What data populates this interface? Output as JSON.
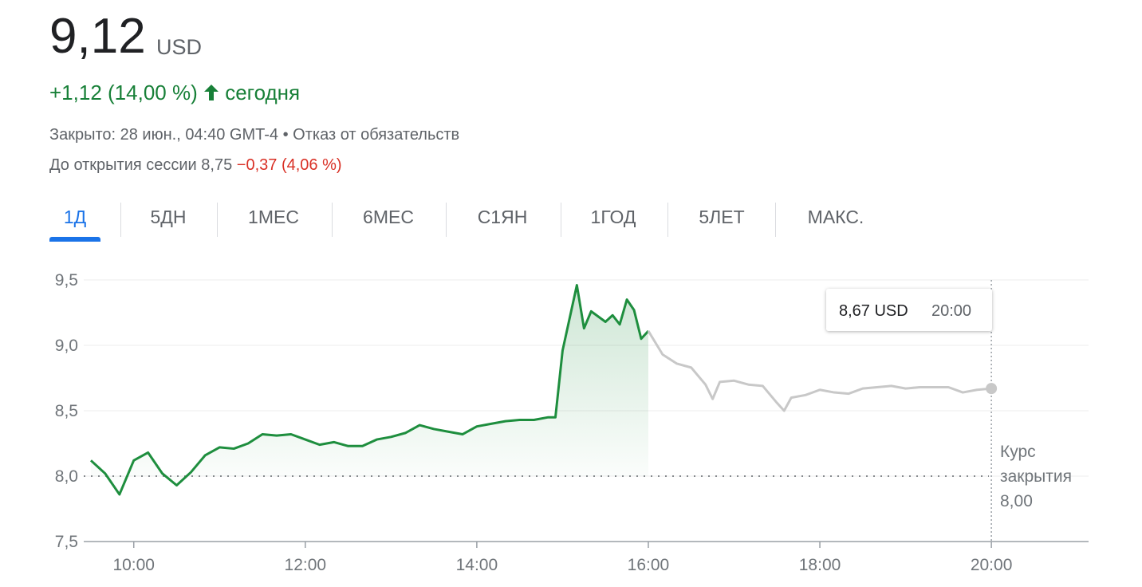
{
  "header": {
    "price": "9,12",
    "currency": "USD",
    "change": "+1,12 (14,00 %)",
    "period": "сегодня",
    "status": "Закрыто: 28 июн., 04:40 GMT-4",
    "disclaimer": "Отказ от обязательств",
    "premarket_label": "До открытия сессии 8,75",
    "premarket_change": "−0,37 (4,06 %)"
  },
  "tabs": [
    "1Д",
    "5ДН",
    "1МЕС",
    "6МЕС",
    "С1ЯН",
    "1ГОД",
    "5ЛЕТ",
    "МАКС."
  ],
  "chart_data": {
    "type": "line",
    "xlim": [
      565,
      1268
    ],
    "xticks": [
      {
        "value": 600,
        "label": "10:00"
      },
      {
        "value": 720,
        "label": "12:00"
      },
      {
        "value": 840,
        "label": "14:00"
      },
      {
        "value": 960,
        "label": "16:00"
      },
      {
        "value": 1080,
        "label": "18:00"
      },
      {
        "value": 1200,
        "label": "20:00"
      }
    ],
    "ylim": [
      7.5,
      9.5
    ],
    "yticks": [
      {
        "value": 7.5,
        "label": "7,5"
      },
      {
        "value": 8,
        "label": "8,0"
      },
      {
        "value": 8.5,
        "label": "8,5"
      },
      {
        "value": 9,
        "label": "9,0"
      },
      {
        "value": 9.5,
        "label": "9,5"
      }
    ],
    "grid": true,
    "series": [
      {
        "color": "#1e8e3e",
        "fill": true,
        "x": [
          570,
          580,
          590,
          600,
          610,
          620,
          630,
          640,
          650,
          660,
          670,
          680,
          690,
          700,
          710,
          720,
          730,
          740,
          750,
          760,
          770,
          780,
          790,
          800,
          810,
          820,
          830,
          840,
          850,
          860,
          870,
          880,
          890,
          895,
          900,
          910,
          915,
          920,
          930,
          935,
          940,
          945,
          950,
          955,
          960
        ],
        "values": [
          8.12,
          8.02,
          7.86,
          8.12,
          8.18,
          8.02,
          7.93,
          8.03,
          8.16,
          8.22,
          8.21,
          8.25,
          8.32,
          8.31,
          8.32,
          8.28,
          8.24,
          8.26,
          8.23,
          8.23,
          8.28,
          8.3,
          8.33,
          8.39,
          8.36,
          8.34,
          8.32,
          8.38,
          8.4,
          8.42,
          8.43,
          8.43,
          8.45,
          8.45,
          8.96,
          9.46,
          9.13,
          9.26,
          9.18,
          9.23,
          9.16,
          9.35,
          9.27,
          9.05,
          9.11
        ]
      },
      {
        "color": "#c8c8c8",
        "fill": false,
        "x": [
          960,
          970,
          980,
          990,
          1000,
          1005,
          1010,
          1020,
          1030,
          1040,
          1050,
          1055,
          1060,
          1070,
          1080,
          1090,
          1100,
          1110,
          1120,
          1130,
          1140,
          1150,
          1160,
          1170,
          1180,
          1190,
          1200
        ],
        "values": [
          9.11,
          8.93,
          8.86,
          8.83,
          8.7,
          8.59,
          8.72,
          8.73,
          8.7,
          8.69,
          8.56,
          8.5,
          8.6,
          8.62,
          8.66,
          8.64,
          8.63,
          8.67,
          8.68,
          8.69,
          8.67,
          8.68,
          8.68,
          8.68,
          8.64,
          8.66,
          8.67
        ]
      }
    ],
    "reference": {
      "value": 8,
      "label": "Курс закрытия",
      "value_label": "8,00"
    },
    "tooltip": {
      "price": "8,67 USD",
      "time": "20:00"
    }
  }
}
